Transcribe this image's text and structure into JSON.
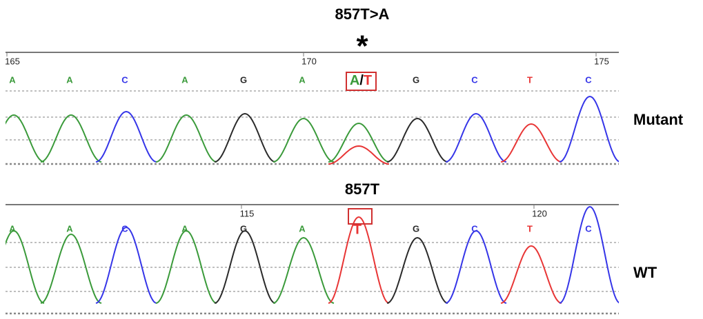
{
  "colors": {
    "A": "#3a9a3a",
    "C": "#3535e8",
    "G": "#2a2a2a",
    "T": "#e83535"
  },
  "mutant": {
    "title": "857T>A",
    "marker": "*",
    "label": "Mutant",
    "positions": [
      "165",
      "170",
      "175"
    ],
    "bases": [
      "A",
      "A",
      "C",
      "A",
      "G",
      "A",
      {
        "first": "A",
        "sep": "/",
        "second": "T"
      },
      "G",
      "C",
      "T",
      "C"
    ]
  },
  "wt": {
    "title": "857T",
    "label": "WT",
    "positions": [
      "115",
      "120"
    ],
    "bases": [
      "A",
      "A",
      "C",
      "A",
      "G",
      "A",
      "T",
      "G",
      "C",
      "T",
      "C"
    ]
  }
}
